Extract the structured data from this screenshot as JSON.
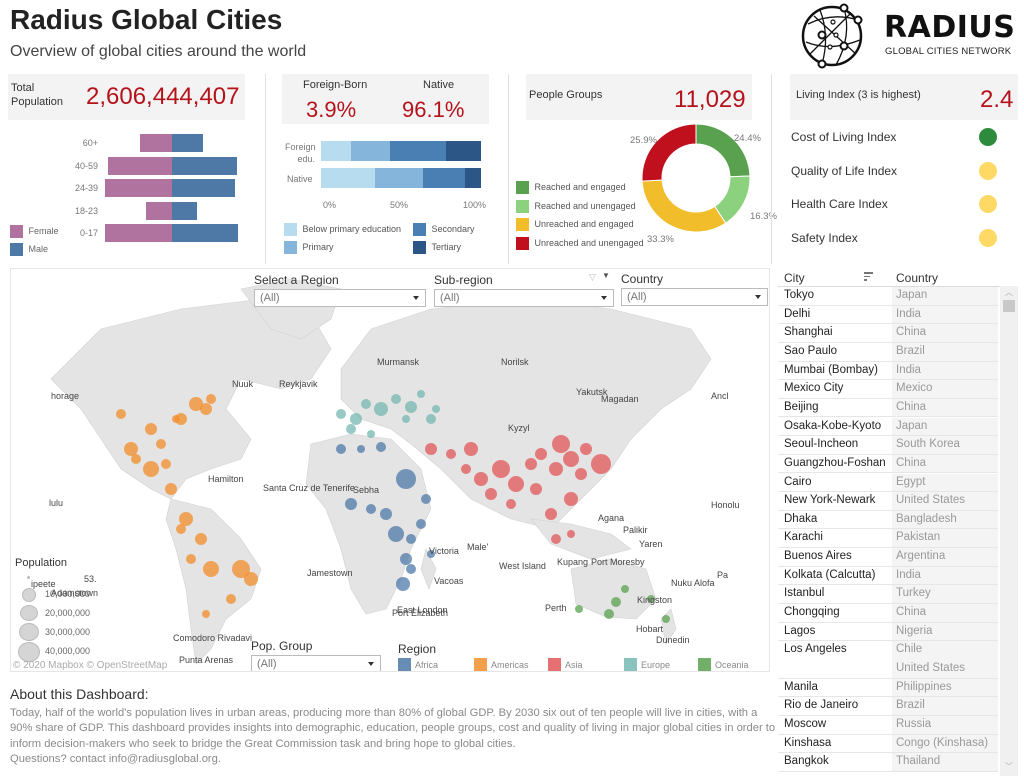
{
  "header": {
    "title": "Radius Global Cities",
    "subtitle": "Overview of global cities around the world",
    "logo_name": "RADIUS",
    "logo_tagline": "GLOBAL CITIES NETWORK"
  },
  "kpis": {
    "total_population_label_1": "Total",
    "total_population_label_2": "Population",
    "total_population_value": "2,606,444,407",
    "foreign_born_label": "Foreign-Born",
    "foreign_born_value": "3.9%",
    "native_label": "Native",
    "native_value": "96.1%",
    "people_groups_label": "People Groups",
    "people_groups_value": "11,029",
    "living_index_label": "Living Index (3 is highest)",
    "living_index_value": "2.4"
  },
  "colors": {
    "accent_red": "#b5121b",
    "female": "#b0739f",
    "male": "#4e79a7",
    "africa": "#4e79a7",
    "americas": "#f28e2b",
    "asia": "#e15759",
    "europe": "#76b7b2",
    "oceania": "#59a14f"
  },
  "chart_data": [
    {
      "type": "bar",
      "title": "Population pyramid by age and gender",
      "categories": [
        "60+",
        "40-59",
        "24-39",
        "18-23",
        "0-17"
      ],
      "series": [
        {
          "name": "Female",
          "values": [
            32,
            64,
            67,
            26,
            67
          ]
        },
        {
          "name": "Male",
          "values": [
            31,
            65,
            63,
            25,
            66
          ]
        }
      ],
      "legend": [
        "Female",
        "Male"
      ],
      "xlabel": "",
      "ylabel": ""
    },
    {
      "type": "bar",
      "title": "Education level (stacked 100%)",
      "categories": [
        "Foreign edu.",
        "Native"
      ],
      "series": [
        {
          "name": "Below primary education",
          "values": [
            19,
            34
          ]
        },
        {
          "name": "Primary",
          "values": [
            24,
            30
          ]
        },
        {
          "name": "Secondary",
          "values": [
            35,
            26
          ]
        },
        {
          "name": "Tertiary",
          "values": [
            22,
            10
          ]
        }
      ],
      "xticks": [
        "0%",
        "50%",
        "100%"
      ],
      "xlim": [
        0,
        100
      ]
    },
    {
      "type": "pie",
      "title": "People Groups engagement",
      "categories": [
        "Reached and engaged",
        "Reached and unengaged",
        "Unreached and engaged",
        "Unreached and unengaged"
      ],
      "values": [
        24.4,
        16.3,
        33.3,
        25.9
      ],
      "labels": [
        "24.4%",
        "16.3%",
        "33.3%",
        "25.9%"
      ],
      "colors": [
        "#59a14f",
        "#8cd17d",
        "#f1ce63",
        "#c0101e"
      ]
    }
  ],
  "pyramid": {
    "rows": [
      {
        "label": "60+",
        "female": 32,
        "male": 31
      },
      {
        "label": "40-59",
        "female": 64,
        "male": 65
      },
      {
        "label": "24-39",
        "female": 67,
        "male": 63
      },
      {
        "label": "18-23",
        "female": 26,
        "male": 25
      },
      {
        "label": "0-17",
        "female": 67,
        "male": 66
      }
    ],
    "legend_female": "Female",
    "legend_male": "Male"
  },
  "education": {
    "row1_label_1": "Foreign",
    "row1_label_2": "edu.",
    "row2_label": "Native",
    "ticks": [
      "0%",
      "50%",
      "100%"
    ],
    "legend": [
      "Below primary education",
      "Primary",
      "Secondary",
      "Tertiary"
    ]
  },
  "people_groups": {
    "legend": [
      "Reached and engaged",
      "Reached and unengaged",
      "Unreached and engaged",
      "Unreached and unengaged"
    ],
    "labels": [
      "24.4%",
      "16.3%",
      "33.3%",
      "25.9%"
    ]
  },
  "living_indices": [
    {
      "label": "Cost of Living Index",
      "color": "#2e8b3e"
    },
    {
      "label": "Quality of Life Index",
      "color": "#ffd966"
    },
    {
      "label": "Health Care Index",
      "color": "#ffd966"
    },
    {
      "label": "Safety Index",
      "color": "#ffd966"
    }
  ],
  "filters": {
    "region_label": "Select a Region",
    "region_value": "(All)",
    "subregion_label": "Sub-region",
    "subregion_value": "(All)",
    "country_label": "Country",
    "country_value": "(All)",
    "pop_group_label": "Pop. Group",
    "pop_group_value": "(All)"
  },
  "map": {
    "attribution": "© 2020 Mapbox  © OpenStreetMap",
    "population_legend_title": "Population",
    "population_legend": [
      "10,000,000",
      "20,000,000",
      "30,000,000",
      "40,000,000"
    ],
    "region_legend_title": "Region",
    "regions": [
      "Africa",
      "Americas",
      "Asia",
      "Europe",
      "Oceania"
    ],
    "place_labels": [
      "horage",
      "Nuuk",
      "Reykjavik",
      "Murmansk",
      "Norilsk",
      "Yakutsk",
      "Magadan",
      "Ancl",
      "Kyzyl",
      "Hamilton",
      "Santa Cruz de Tenerife",
      "Sebha",
      "lulu",
      "Honolu",
      "Agana",
      "Palikir",
      "Yaren",
      "Male'",
      "Victoria",
      "West Island",
      "Kupang",
      "Port Moresby",
      "Jamestown",
      "Vacoas",
      "Nuku Alofa",
      "Pa",
      "Perth",
      "Kingston",
      "East London",
      "Port Elizabeth",
      "Hobart",
      "Dunedin",
      "Comodoro Rivadavi",
      "Punta Arenas",
      "ipeete",
      "53.",
      "Adamstown"
    ]
  },
  "city_table": {
    "col_city": "City",
    "col_country": "Country",
    "rows": [
      {
        "city": "Tokyo",
        "country": "Japan"
      },
      {
        "city": "Delhi",
        "country": "India"
      },
      {
        "city": "Shanghai",
        "country": "China"
      },
      {
        "city": "Sao Paulo",
        "country": "Brazil"
      },
      {
        "city": "Mumbai (Bombay)",
        "country": "India"
      },
      {
        "city": "Mexico City",
        "country": "Mexico"
      },
      {
        "city": "Beijing",
        "country": "China"
      },
      {
        "city": "Osaka-Kobe-Kyoto",
        "country": "Japan"
      },
      {
        "city": "Seoul-Incheon",
        "country": "South Korea"
      },
      {
        "city": "Guangzhou-Foshan",
        "country": "China"
      },
      {
        "city": "Cairo",
        "country": "Egypt"
      },
      {
        "city": "New York-Newark",
        "country": "United States"
      },
      {
        "city": "Dhaka",
        "country": "Bangladesh"
      },
      {
        "city": "Karachi",
        "country": "Pakistan"
      },
      {
        "city": "Buenos Aires",
        "country": "Argentina"
      },
      {
        "city": "Kolkata (Calcutta)",
        "country": "India"
      },
      {
        "city": "Istanbul",
        "country": "Turkey"
      },
      {
        "city": "Chongqing",
        "country": "China"
      },
      {
        "city": "Lagos",
        "country": "Nigeria"
      },
      {
        "city": "Los Angeles",
        "country": "Chile"
      },
      {
        "city": "",
        "country": "United States"
      },
      {
        "city": "Manila",
        "country": "Philippines"
      },
      {
        "city": "Rio de Janeiro",
        "country": "Brazil"
      },
      {
        "city": "Moscow",
        "country": "Russia"
      },
      {
        "city": "Kinshasa",
        "country": "Congo (Kinshasa)"
      },
      {
        "city": "Bangkok",
        "country": "Thailand"
      }
    ]
  },
  "about": {
    "heading": "About this Dashboard:",
    "body": "Today, half of the world's population lives in urban areas, producing more than 80% of global GDP. By 2030 six out of ten people will live in cities, with a 90% share of GDP. This dashboard provides insights into demographic, education, people groups, cost and quality of living in major global cities in order to inform decision-makers who seek to bridge the Great Commission task and bring hope to global cities.",
    "contact": "Questions? contact info@radiusglobal.org."
  }
}
